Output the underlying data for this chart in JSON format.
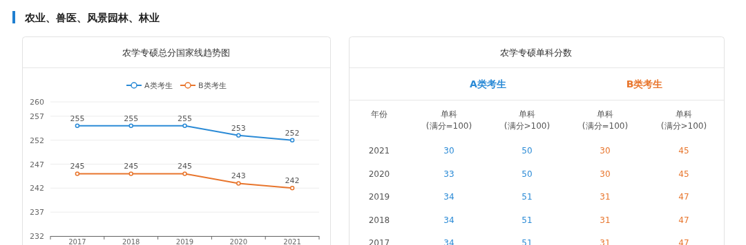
{
  "chart_data": [
    {
      "type": "line",
      "title": "农学专硕总分国家线趋势图",
      "annotations": [
        "农业、兽医、风景园林、林业"
      ],
      "categories": [
        "2017",
        "2018",
        "2019",
        "2020",
        "2021"
      ],
      "series": [
        {
          "name": "A类考生",
          "color": "#2a8ad6",
          "values": [
            255,
            255,
            255,
            253,
            252
          ]
        },
        {
          "name": "B类考生",
          "color": "#e8752c",
          "values": [
            245,
            245,
            245,
            243,
            242
          ]
        }
      ],
      "ylim": [
        232,
        260
      ],
      "yticks": [
        232,
        237,
        242,
        247,
        252,
        257,
        260
      ],
      "grid": "y",
      "legend": "top",
      "marker": "circle",
      "line_style": "solid",
      "data_labels": true
    },
    {
      "type": "heatmap",
      "title": "农学专硕单科分数",
      "ylabel": "年份",
      "colors": [
        "#2a8ad6",
        "#2a8ad6",
        "#e8752c",
        "#e8752c"
      ],
      "annotations": [
        "A类考生",
        "B类考生"
      ],
      "categories": [
        "单科\n(满分=100)",
        "单科\n(满分>100)",
        "单科\n(满分=100)",
        "单科\n(满分>100)"
      ],
      "y_categories": [
        "2021",
        "2020",
        "2019",
        "2018",
        "2017"
      ],
      "cells": [
        [
          30,
          50,
          30,
          45
        ],
        [
          33,
          50,
          30,
          45
        ],
        [
          34,
          51,
          31,
          47
        ],
        [
          34,
          51,
          31,
          47
        ],
        [
          34,
          51,
          31,
          47
        ]
      ],
      "data_labels": true
    }
  ]
}
